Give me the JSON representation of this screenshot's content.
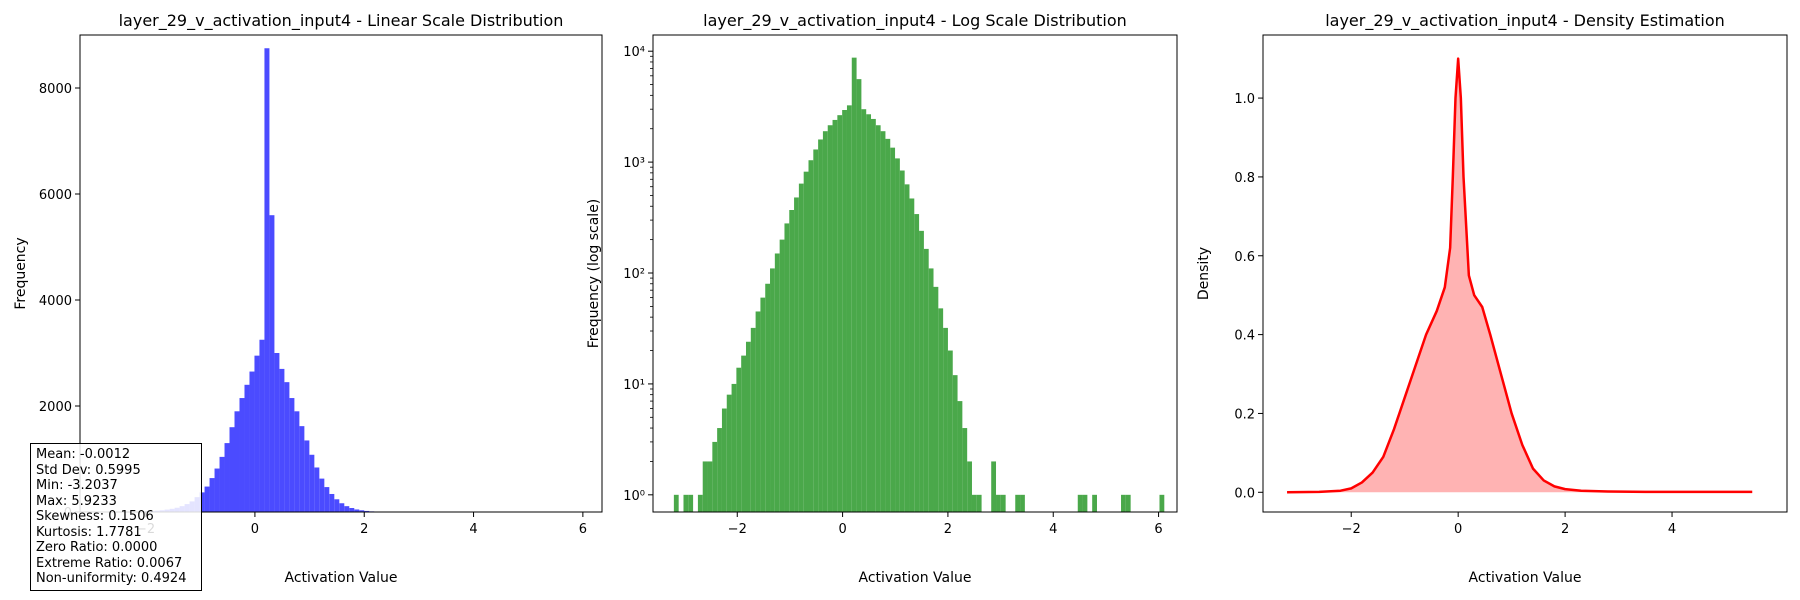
{
  "chart_data": [
    {
      "type": "bar",
      "title": "layer_29_v_activation_input4 - Linear Scale Distribution",
      "xlabel": "Activation Value",
      "ylabel": "Frequency",
      "xlim": [
        -3.2,
        6.35
      ],
      "ylim": [
        0,
        9000
      ],
      "xticks": [
        -2,
        0,
        2,
        4,
        6
      ],
      "xtick_labels": [
        "−2",
        "0",
        "2",
        "4",
        "6"
      ],
      "yticks": [
        0,
        2000,
        4000,
        6000,
        8000
      ],
      "ytick_labels": [
        "0",
        "2000",
        "4000",
        "6000",
        "8000"
      ],
      "color": "#4b4bff",
      "bin_start": -3.2037,
      "bin_width": 0.0913,
      "values": [
        1,
        0,
        1,
        1,
        0,
        1,
        2,
        2,
        3,
        4,
        6,
        8,
        10,
        14,
        18,
        24,
        32,
        45,
        60,
        80,
        110,
        150,
        200,
        280,
        370,
        480,
        640,
        820,
        1040,
        1300,
        1600,
        1900,
        2150,
        2400,
        2650,
        2950,
        3250,
        8750,
        5600,
        3000,
        2700,
        2450,
        2150,
        1900,
        1620,
        1350,
        1080,
        840,
        630,
        470,
        340,
        240,
        165,
        110,
        75,
        48,
        32,
        20,
        12,
        7,
        4,
        2,
        1,
        1,
        0,
        0,
        2,
        1,
        1,
        0,
        0,
        1,
        1,
        0,
        0,
        0,
        0,
        0,
        0,
        0,
        0,
        0,
        0,
        0,
        1,
        1,
        0,
        1,
        0,
        0,
        0,
        0,
        0,
        1,
        1,
        0,
        0,
        0,
        0,
        0,
        0,
        1
      ],
      "stats": {
        "mean": "Mean: -0.0012",
        "std": "Std Dev: 0.5995",
        "min": "Min: -3.2037",
        "max": "Max: 5.9233",
        "skewness": "Skewness: 0.1506",
        "kurtosis": "Kurtosis: 1.7781",
        "zero_ratio": "Zero Ratio: 0.0000",
        "extreme_ratio": "Extreme Ratio: 0.0067",
        "non_uniformity": "Non-uniformity: 0.4924"
      }
    },
    {
      "type": "bar",
      "title": "layer_29_v_activation_input4 - Log Scale Distribution",
      "xlabel": "Activation Value",
      "ylabel": "Frequency (log scale)",
      "yscale": "log",
      "xlim": [
        -3.6,
        6.35
      ],
      "ylim": [
        0.7,
        14000
      ],
      "xticks": [
        -2,
        0,
        2,
        4,
        6
      ],
      "xtick_labels": [
        "−2",
        "0",
        "2",
        "4",
        "6"
      ],
      "yticks": [
        1,
        10,
        100,
        1000,
        10000
      ],
      "ytick_labels": [
        "10⁰",
        "10¹",
        "10²",
        "10³",
        "10⁴"
      ],
      "color": "#4aa84a",
      "bin_start": -3.2037,
      "bin_width": 0.0913,
      "values": [
        1,
        0,
        1,
        1,
        0,
        1,
        2,
        2,
        3,
        4,
        6,
        8,
        10,
        14,
        18,
        24,
        32,
        45,
        60,
        80,
        110,
        150,
        200,
        280,
        370,
        480,
        640,
        820,
        1040,
        1300,
        1600,
        1900,
        2150,
        2400,
        2650,
        2950,
        3250,
        8750,
        5600,
        3000,
        2700,
        2450,
        2150,
        1900,
        1620,
        1350,
        1080,
        840,
        630,
        470,
        340,
        240,
        165,
        110,
        75,
        48,
        32,
        20,
        12,
        7,
        4,
        2,
        1,
        1,
        0,
        0,
        2,
        1,
        1,
        0,
        0,
        1,
        1,
        0,
        0,
        0,
        0,
        0,
        0,
        0,
        0,
        0,
        0,
        0,
        1,
        1,
        0,
        1,
        0,
        0,
        0,
        0,
        0,
        1,
        1,
        0,
        0,
        0,
        0,
        0,
        0,
        1
      ]
    },
    {
      "type": "area",
      "title": "layer_29_v_activation_input4 - Density Estimation",
      "xlabel": "Activation Value",
      "ylabel": "Density",
      "xlim": [
        -3.65,
        6.15
      ],
      "ylim": [
        -0.05,
        1.16
      ],
      "xticks": [
        -2,
        0,
        2,
        4
      ],
      "xtick_labels": [
        "−2",
        "0",
        "2",
        "4"
      ],
      "yticks": [
        0,
        0.2,
        0.4,
        0.6,
        0.8,
        1.0
      ],
      "ytick_labels": [
        "0.0",
        "0.2",
        "0.4",
        "0.6",
        "0.8",
        "1.0"
      ],
      "line_color": "#ff0000",
      "fill_color": "#ffb3b3",
      "x": [
        -3.2,
        -2.6,
        -2.2,
        -2.0,
        -1.8,
        -1.6,
        -1.4,
        -1.2,
        -1.0,
        -0.8,
        -0.6,
        -0.4,
        -0.25,
        -0.15,
        -0.1,
        -0.05,
        0.0,
        0.05,
        0.1,
        0.2,
        0.3,
        0.45,
        0.6,
        0.8,
        1.0,
        1.2,
        1.4,
        1.6,
        1.8,
        2.0,
        2.3,
        2.8,
        3.5,
        4.5,
        5.5
      ],
      "y": [
        0.0,
        0.001,
        0.004,
        0.01,
        0.025,
        0.05,
        0.09,
        0.16,
        0.24,
        0.32,
        0.4,
        0.46,
        0.52,
        0.62,
        0.8,
        1.0,
        1.1,
        1.0,
        0.8,
        0.55,
        0.5,
        0.47,
        0.4,
        0.3,
        0.2,
        0.12,
        0.06,
        0.03,
        0.015,
        0.008,
        0.004,
        0.002,
        0.001,
        0.001,
        0.001
      ]
    }
  ]
}
